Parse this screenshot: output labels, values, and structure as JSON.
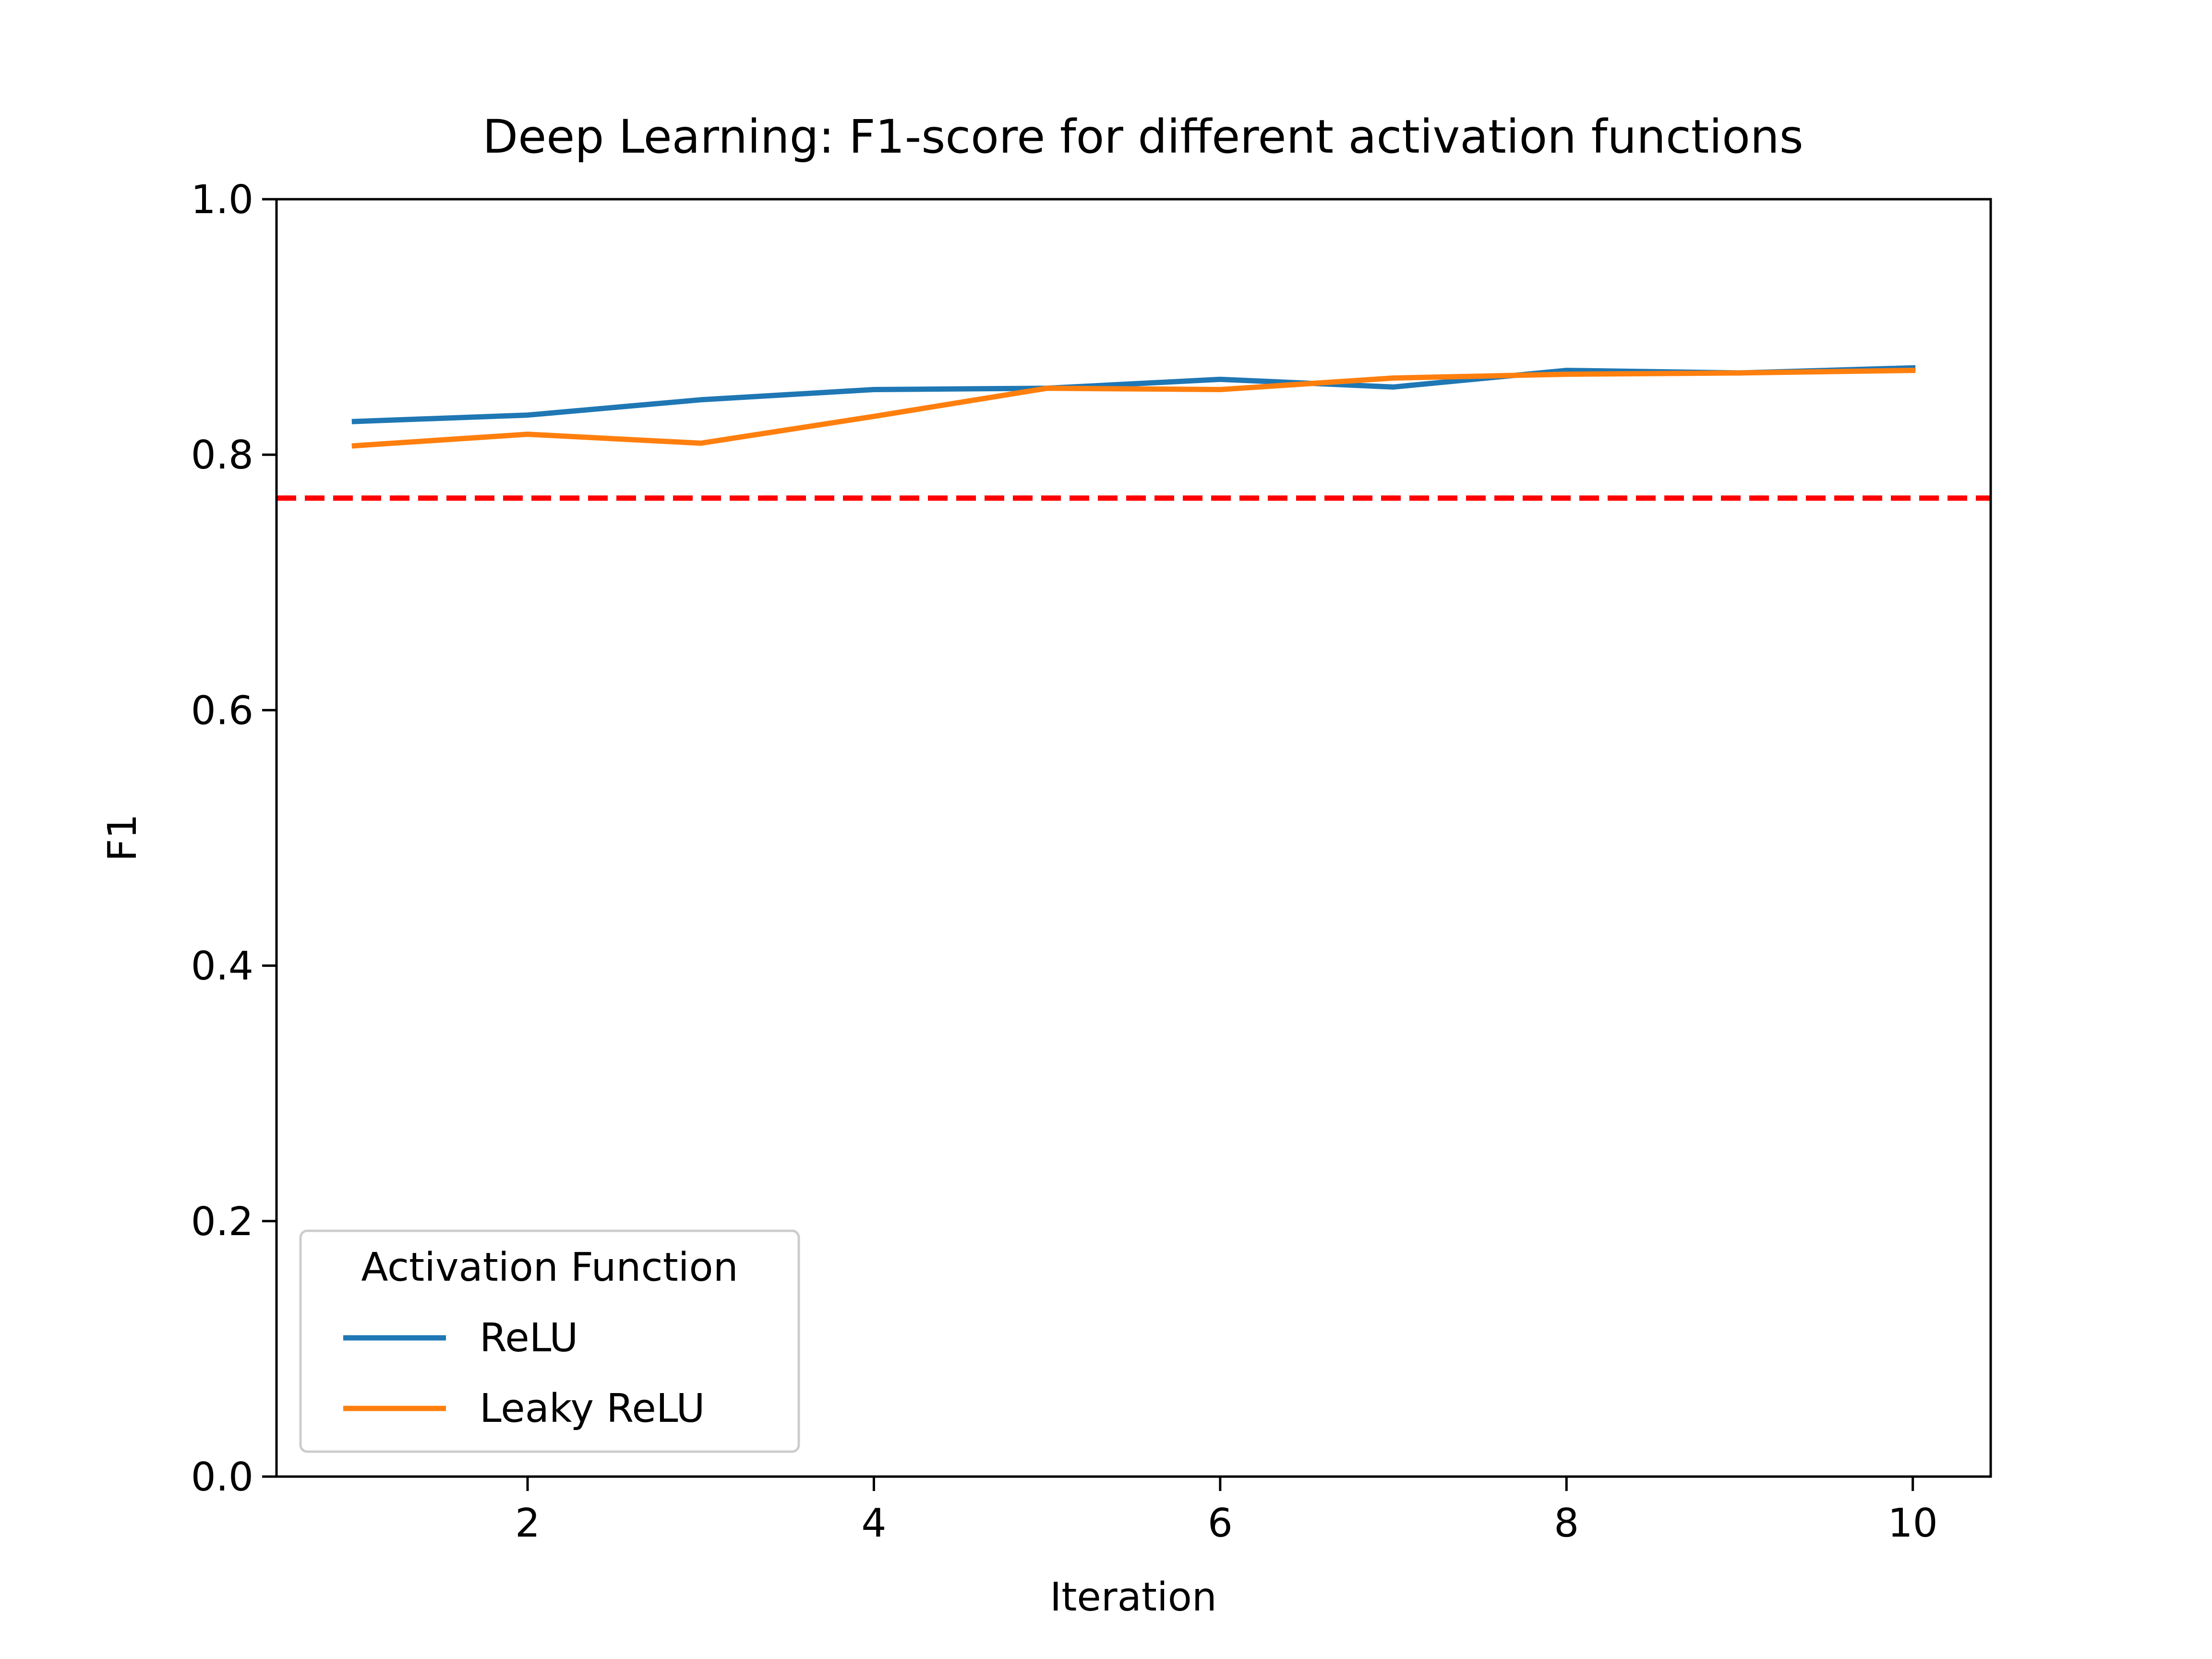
{
  "chart_data": {
    "type": "line",
    "title": "Deep Learning: F1-score for different activation functions",
    "xlabel": "Iteration",
    "ylabel": "F1",
    "xlim": [
      0.55,
      10.45
    ],
    "ylim": [
      0,
      1
    ],
    "x_ticks": [
      2,
      4,
      6,
      8,
      10
    ],
    "y_ticks": [
      0.0,
      0.2,
      0.4,
      0.6,
      0.8,
      1.0
    ],
    "x_tick_labels": [
      "2",
      "4",
      "6",
      "8",
      "10"
    ],
    "y_tick_labels": [
      "0.0",
      "0.2",
      "0.4",
      "0.6",
      "0.8",
      "1.0"
    ],
    "grid": false,
    "legend": {
      "title": "Activation Function",
      "placement": "lower-left"
    },
    "x": [
      1,
      2,
      3,
      4,
      5,
      6,
      7,
      8,
      9,
      10
    ],
    "series": [
      {
        "name": "ReLU",
        "color": "#1f77b4",
        "values": [
          0.826,
          0.831,
          0.843,
          0.851,
          0.852,
          0.859,
          0.853,
          0.866,
          0.864,
          0.868
        ]
      },
      {
        "name": "Leaky ReLU",
        "color": "#ff7f0e",
        "values": [
          0.807,
          0.816,
          0.809,
          0.83,
          0.852,
          0.851,
          0.86,
          0.863,
          0.864,
          0.866
        ]
      }
    ],
    "reference_lines": [
      {
        "orientation": "horizontal",
        "y": 0.766,
        "color": "#ff0000",
        "style": "dashed"
      }
    ]
  }
}
